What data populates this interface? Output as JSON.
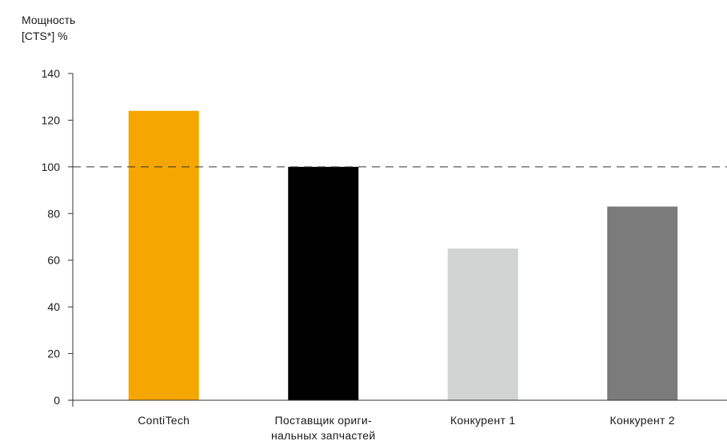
{
  "chart_data": {
    "type": "bar",
    "ylabel_lines": [
      "Мощность",
      "[CTS*] %"
    ],
    "xlabel": "",
    "categories": [
      [
        "ContiTech"
      ],
      [
        "Поставщик ориги-",
        "нальных запчастей"
      ],
      [
        "Конкурент 1"
      ],
      [
        "Конкурент 2"
      ]
    ],
    "values": [
      124,
      100,
      65,
      83
    ],
    "colors": [
      "#f5a600",
      "#000000",
      "#d2d3d3",
      "#7b7b7b"
    ],
    "ylim": [
      0,
      140
    ],
    "yticks": [
      0,
      20,
      40,
      60,
      80,
      100,
      120,
      140
    ],
    "reference_line": {
      "value": 100,
      "style": "dashed"
    },
    "grid": false,
    "legend": "none"
  }
}
